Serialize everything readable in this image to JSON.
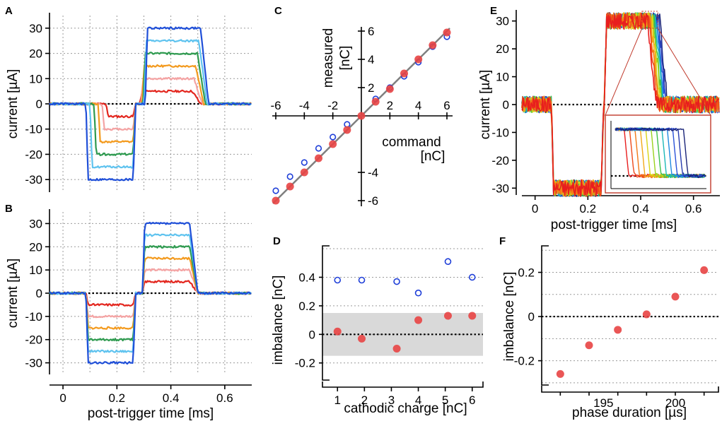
{
  "chart_data": [
    {
      "panel": "A",
      "type": "line",
      "xlabel": "post-trigger time [ms]",
      "ylabel": "current [µA]",
      "xlim": [
        -0.05,
        0.7
      ],
      "ylim": [
        -35,
        35
      ],
      "xticks": [
        "0",
        "0.2",
        "0.4",
        "0.6"
      ],
      "yticks": [
        "30",
        "20",
        "10",
        "0",
        "-10",
        "-20",
        "-30"
      ],
      "series": [
        {
          "name": "5 µA",
          "color": "#e3261e",
          "cath_start": 0.16,
          "cath_end": 0.26,
          "amp": 5
        },
        {
          "name": "10 µA",
          "color": "#f4a3a3",
          "cath_start": 0.145,
          "cath_end": 0.26,
          "amp": 10
        },
        {
          "name": "15 µA",
          "color": "#f39a1e",
          "cath_start": 0.13,
          "cath_end": 0.26,
          "amp": 15
        },
        {
          "name": "20 µA",
          "color": "#2e9a4f",
          "cath_start": 0.115,
          "cath_end": 0.26,
          "amp": 20
        },
        {
          "name": "25 µA",
          "color": "#5fc3ef",
          "cath_start": 0.1,
          "cath_end": 0.26,
          "amp": 25
        },
        {
          "name": "30 µA",
          "color": "#1f4fd8",
          "cath_start": 0.085,
          "cath_end": 0.26,
          "amp": 30
        }
      ]
    },
    {
      "panel": "B",
      "type": "line",
      "xlabel": "post-trigger time [ms]",
      "ylabel": "current [µA]",
      "xlim": [
        -0.05,
        0.7
      ],
      "ylim": [
        -35,
        35
      ],
      "yticks": [
        "30",
        "20",
        "10",
        "0",
        "-10",
        "-20",
        "-30"
      ],
      "series": [
        {
          "name": "5 µA",
          "color": "#e3261e",
          "amp": 5
        },
        {
          "name": "10 µA",
          "color": "#f4a3a3",
          "amp": 10
        },
        {
          "name": "15 µA",
          "color": "#f39a1e",
          "amp": 15
        },
        {
          "name": "20 µA",
          "color": "#2e9a4f",
          "amp": 20
        },
        {
          "name": "25 µA",
          "color": "#5fc3ef",
          "amp": 25
        },
        {
          "name": "30 µA",
          "color": "#1f4fd8",
          "amp": 30
        }
      ]
    },
    {
      "panel": "C",
      "type": "scatter",
      "xlabel_line1": "command",
      "xlabel_line2": "[nC]",
      "ylabel_line1": "measured",
      "ylabel_line2": "[nC]",
      "xlim": [
        -6.2,
        6.4
      ],
      "ylim": [
        -6.2,
        6.2
      ],
      "xticks": [
        "-6",
        "-4",
        "-2",
        "2",
        "4",
        "6"
      ],
      "yticks": [
        "6",
        "4",
        "2",
        "-4",
        "-6"
      ],
      "series": [
        {
          "name": "open",
          "color": "#1f3fd8",
          "x": [
            -6,
            -5,
            -4,
            -3,
            -2,
            -1,
            1,
            2,
            3,
            4,
            5,
            6
          ],
          "y": [
            -5.3,
            -4.3,
            -3.3,
            -2.3,
            -1.5,
            -0.6,
            1.2,
            2.0,
            2.8,
            3.8,
            4.9,
            5.6
          ]
        },
        {
          "name": "filled",
          "color": "#e84444",
          "x": [
            -6,
            -5,
            -4,
            -3,
            -2,
            -1,
            0,
            1,
            2,
            3,
            4,
            5,
            6
          ],
          "y": [
            -6.0,
            -5.0,
            -4.0,
            -3.0,
            -2.0,
            -1.0,
            0,
            1.0,
            1.9,
            3.0,
            4.0,
            5.0,
            5.9
          ]
        }
      ]
    },
    {
      "panel": "D",
      "type": "scatter",
      "xlabel": "cathodic charge [nC]",
      "ylabel": "imbalance [nC]",
      "xlim": [
        0.6,
        6.4
      ],
      "ylim": [
        -0.32,
        0.62
      ],
      "xticks": [
        "1",
        "2",
        "3",
        "4",
        "5",
        "6"
      ],
      "yticks": [
        "0.4",
        "0.2",
        "0",
        "-0.2"
      ],
      "band": [
        -0.15,
        0.15
      ],
      "series": [
        {
          "name": "open",
          "color": "#1f3fd8",
          "x": [
            1,
            1.9,
            3.2,
            4.0,
            5.1,
            6.0
          ],
          "y": [
            0.38,
            0.38,
            0.37,
            0.29,
            0.51,
            0.4
          ]
        },
        {
          "name": "filled",
          "color": "#e84444",
          "x": [
            1,
            1.9,
            3.2,
            4.0,
            5.1,
            6.0
          ],
          "y": [
            0.02,
            -0.03,
            -0.1,
            0.1,
            0.13,
            0.13
          ]
        }
      ]
    },
    {
      "panel": "E",
      "type": "line",
      "xlabel": "post-trigger time [ms]",
      "ylabel": "current [µA]",
      "xlim": [
        -0.05,
        0.7
      ],
      "ylim": [
        -35,
        35
      ],
      "xticks": [
        "0",
        "0.2",
        "0.4",
        "0.6"
      ],
      "yticks": [
        "30",
        "20",
        "10",
        "0",
        "-10",
        "-20",
        "-30"
      ],
      "trace_colors": [
        "#e81e1e",
        "#ee4a1a",
        "#f27a18",
        "#f2a818",
        "#d8d418",
        "#9ad21e",
        "#3cc04a",
        "#1cb8b8",
        "#1e8ae0",
        "#2a52d8",
        "#283cae",
        "#1a2478"
      ]
    },
    {
      "panel": "F",
      "type": "scatter",
      "xlabel": "phase duration [µs]",
      "ylabel": "imbalance [nC]",
      "xlim": [
        191,
        203
      ],
      "ylim": [
        -0.31,
        0.32
      ],
      "xticks": [
        "195",
        "200"
      ],
      "yticks": [
        "0.2",
        "0",
        "-0.2"
      ],
      "series": [
        {
          "name": "filled",
          "color": "#e84444",
          "x": [
            192,
            194,
            196,
            198,
            200,
            202
          ],
          "y": [
            -0.26,
            -0.13,
            -0.06,
            0.01,
            0.09,
            0.21
          ]
        }
      ]
    }
  ]
}
